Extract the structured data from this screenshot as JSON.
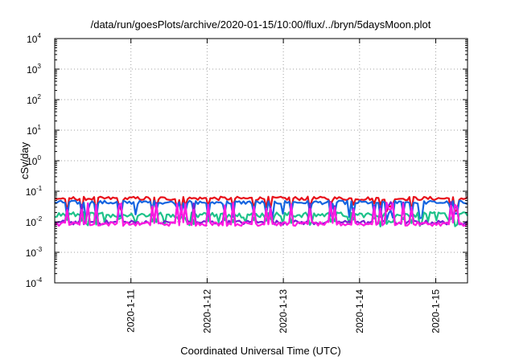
{
  "chart_data": {
    "type": "line",
    "title": "/data/run/goesPlots/archive/2020-01-15/10:00/flux/../bryn/5daysMoon.plot",
    "xlabel": "Coordinated Universal Time (UTC)",
    "ylabel": "cSv/day",
    "yscale": "log",
    "ylim": [
      0.0001,
      10000
    ],
    "y_ticks": [
      {
        "base": "10",
        "exp": "-4",
        "value": 0.0001
      },
      {
        "base": "10",
        "exp": "-3",
        "value": 0.001
      },
      {
        "base": "10",
        "exp": "-2",
        "value": 0.01
      },
      {
        "base": "10",
        "exp": "-1",
        "value": 0.1
      },
      {
        "base": "10",
        "exp": "0",
        "value": 1
      },
      {
        "base": "10",
        "exp": "1",
        "value": 10
      },
      {
        "base": "10",
        "exp": "2",
        "value": 100
      },
      {
        "base": "10",
        "exp": "3",
        "value": 1000
      },
      {
        "base": "10",
        "exp": "4",
        "value": 10000
      }
    ],
    "xlim": [
      "2020-01-10 00:00",
      "2020-01-15 10:00"
    ],
    "x_ticks": [
      {
        "label": "2020-1-11",
        "value": "2020-01-11 00:00"
      },
      {
        "label": "2020-1-12",
        "value": "2020-01-12 00:00"
      },
      {
        "label": "2020-1-13",
        "value": "2020-01-13 00:00"
      },
      {
        "label": "2020-1-14",
        "value": "2020-01-14 00:00"
      },
      {
        "label": "2020-1-15",
        "value": "2020-01-15 00:00"
      }
    ],
    "grid": true,
    "legend": "none",
    "series": [
      {
        "color": "#e8101a",
        "base": 0.058,
        "amp": 0.12,
        "dips": 0.5,
        "dip_frac": 0.2
      },
      {
        "color": "#1565e0",
        "base": 0.043,
        "amp": 0.12,
        "dips": 0.55,
        "dip_frac": 0.25
      },
      {
        "color": "#1ec28a",
        "base": 0.017,
        "amp": 0.18,
        "dips": 0.35,
        "dip_frac": 0.3
      },
      {
        "color": "#7a1fd0",
        "base": 0.0095,
        "amp": 0.14,
        "spike": 0.034,
        "spike_frac": 0.22
      },
      {
        "color": "#ff1ae0",
        "base": 0.0085,
        "amp": 0.13,
        "spike": 0.032,
        "spike_frac": 0.22
      }
    ]
  }
}
